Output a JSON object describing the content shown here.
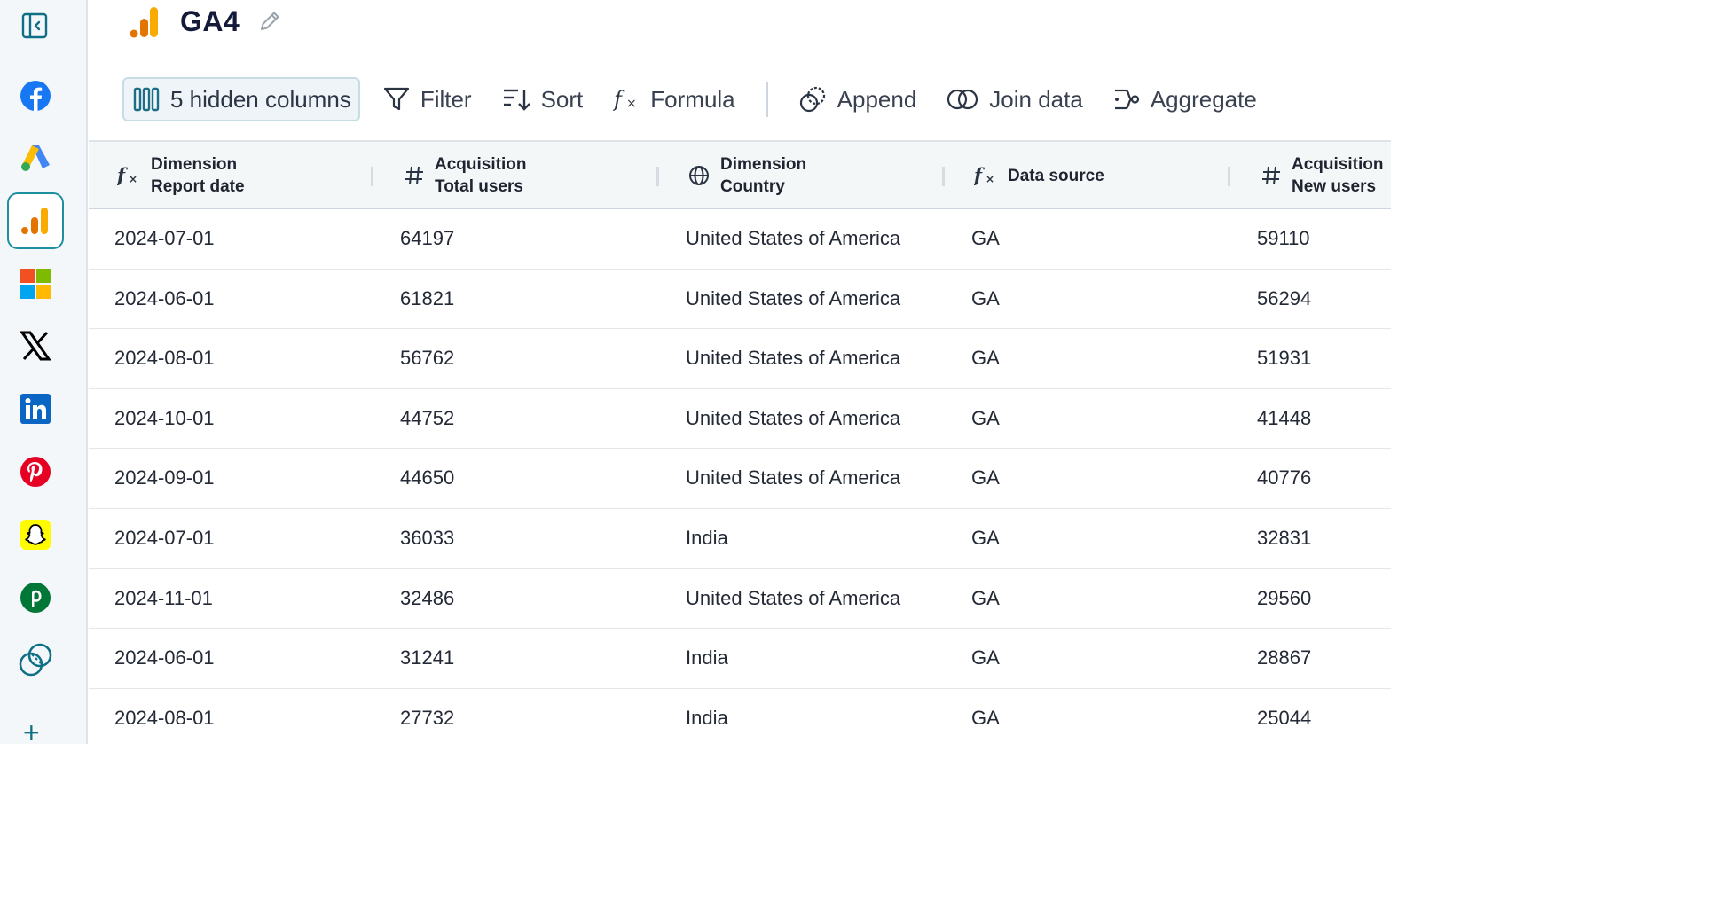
{
  "sidebar": {
    "items": [
      {
        "name": "facebook-icon"
      },
      {
        "name": "google-ads-icon"
      },
      {
        "name": "google-analytics-icon",
        "active": true
      },
      {
        "name": "microsoft-icon"
      },
      {
        "name": "x-icon"
      },
      {
        "name": "linkedin-icon"
      },
      {
        "name": "pinterest-icon"
      },
      {
        "name": "snapchat-icon"
      },
      {
        "name": "pipedrive-icon"
      },
      {
        "name": "blend-icon"
      }
    ],
    "add_label": "+"
  },
  "header": {
    "title": "GA4"
  },
  "toolbar": {
    "hidden_columns": "5 hidden columns",
    "filter": "Filter",
    "sort": "Sort",
    "formula": "Formula",
    "append": "Append",
    "join": "Join data",
    "aggregate": "Aggregate"
  },
  "table": {
    "columns": [
      {
        "line1": "Dimension",
        "line2": "Report date",
        "icon": "formula-icon"
      },
      {
        "line1": "Acquisition",
        "line2": "Total users",
        "icon": "hash-icon"
      },
      {
        "line1": "Dimension",
        "line2": "Country",
        "icon": "globe-icon"
      },
      {
        "line1": "",
        "line2": "Data source",
        "icon": "formula-icon"
      },
      {
        "line1": "Acquisition",
        "line2": "New users",
        "icon": "hash-icon"
      }
    ],
    "rows": [
      [
        "2024-07-01",
        "64197",
        "United States of America",
        "GA",
        "59110"
      ],
      [
        "2024-06-01",
        "61821",
        "United States of America",
        "GA",
        "56294"
      ],
      [
        "2024-08-01",
        "56762",
        "United States of America",
        "GA",
        "51931"
      ],
      [
        "2024-10-01",
        "44752",
        "United States of America",
        "GA",
        "41448"
      ],
      [
        "2024-09-01",
        "44650",
        "United States of America",
        "GA",
        "40776"
      ],
      [
        "2024-07-01",
        "36033",
        "India",
        "GA",
        "32831"
      ],
      [
        "2024-11-01",
        "32486",
        "United States of America",
        "GA",
        "29560"
      ],
      [
        "2024-06-01",
        "31241",
        "India",
        "GA",
        "28867"
      ],
      [
        "2024-08-01",
        "27732",
        "India",
        "GA",
        "25044"
      ]
    ]
  }
}
